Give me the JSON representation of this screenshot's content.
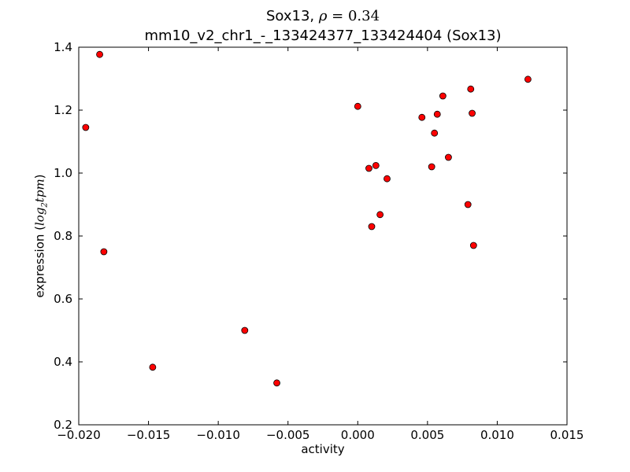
{
  "chart_data": {
    "type": "scatter",
    "title_line1_prefix": "Sox13, ",
    "title_rho_symbol": "ρ",
    "title_rho_value": " = 0.34",
    "title_line2": "mm10_v2_chr1_-_133424377_133424404 (Sox13)",
    "xlabel": "activity",
    "ylabel_prefix": "expression (",
    "ylabel_math": "log",
    "ylabel_sub": "2",
    "ylabel_math2": "tpm",
    "ylabel_suffix": ")",
    "xlim": [
      -0.02,
      0.015
    ],
    "ylim": [
      0.2,
      1.4
    ],
    "xticks": [
      -0.02,
      -0.015,
      -0.01,
      -0.005,
      0.0,
      0.005,
      0.01,
      0.015
    ],
    "xtick_labels": [
      "−0.020",
      "−0.015",
      "−0.010",
      "−0.005",
      "0.000",
      "0.005",
      "0.010",
      "0.015"
    ],
    "yticks": [
      0.2,
      0.4,
      0.6,
      0.8,
      1.0,
      1.2,
      1.4
    ],
    "ytick_labels": [
      "0.2",
      "0.4",
      "0.6",
      "0.8",
      "1.0",
      "1.2",
      "1.4"
    ],
    "grid": false,
    "marker_color": "#ff0000",
    "marker_edge": "#000000",
    "points": [
      {
        "x": -0.0185,
        "y": 1.377
      },
      {
        "x": -0.0195,
        "y": 1.145
      },
      {
        "x": -0.0182,
        "y": 0.75
      },
      {
        "x": -0.0147,
        "y": 0.383
      },
      {
        "x": -0.0081,
        "y": 0.5
      },
      {
        "x": -0.0058,
        "y": 0.333
      },
      {
        "x": 0.0,
        "y": 1.212
      },
      {
        "x": 0.0008,
        "y": 1.015
      },
      {
        "x": 0.0013,
        "y": 1.024
      },
      {
        "x": 0.001,
        "y": 0.83
      },
      {
        "x": 0.0016,
        "y": 0.868
      },
      {
        "x": 0.0021,
        "y": 0.982
      },
      {
        "x": 0.0046,
        "y": 1.177
      },
      {
        "x": 0.0053,
        "y": 1.02
      },
      {
        "x": 0.0055,
        "y": 1.127
      },
      {
        "x": 0.0057,
        "y": 1.187
      },
      {
        "x": 0.0061,
        "y": 1.245
      },
      {
        "x": 0.0065,
        "y": 1.05
      },
      {
        "x": 0.0079,
        "y": 0.9
      },
      {
        "x": 0.0081,
        "y": 1.267
      },
      {
        "x": 0.0082,
        "y": 1.19
      },
      {
        "x": 0.0083,
        "y": 0.77
      },
      {
        "x": 0.0122,
        "y": 1.298
      }
    ]
  }
}
